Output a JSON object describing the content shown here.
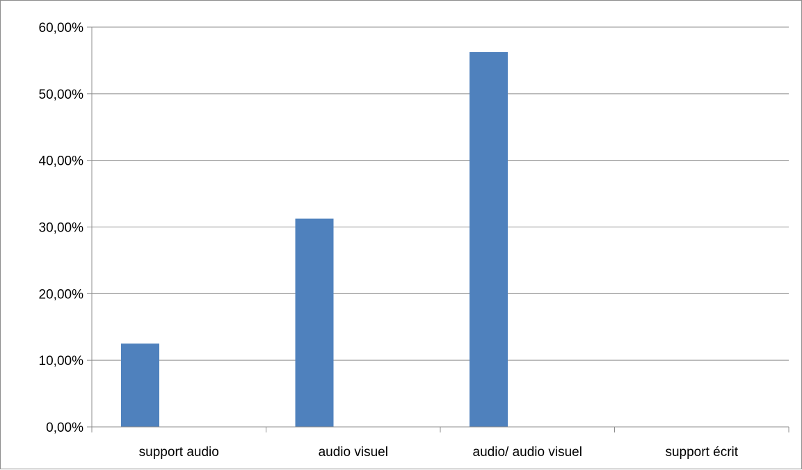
{
  "chart_data": {
    "type": "bar",
    "categories": [
      "support audio",
      "audio visuel",
      "audio/ audio visuel",
      "support écrit"
    ],
    "series": [
      {
        "values": [
          12.5,
          31.25,
          56.25,
          0
        ],
        "color": "#4f81bd"
      }
    ],
    "y_ticks": [
      "0,00%",
      "10,00%",
      "20,00%",
      "30,00%",
      "40,00%",
      "50,00%",
      "60,00%"
    ],
    "ylim": [
      0,
      60
    ],
    "y_unit": "percent",
    "grid": true,
    "legend": "none",
    "title": "",
    "xlabel": "",
    "ylabel": ""
  }
}
